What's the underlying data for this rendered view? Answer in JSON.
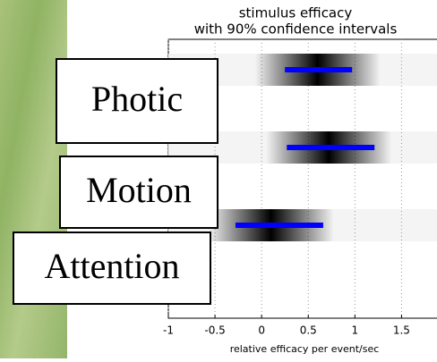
{
  "chart_data": {
    "type": "interval",
    "title": "stimulus efficacy",
    "subtitle": "with 90% confidence intervals",
    "xlabel": "relative efficacy per event/sec",
    "categories": [
      "Photic",
      "Motion",
      "Attention"
    ],
    "estimates": [
      0.6,
      0.72,
      0.1
    ],
    "low": [
      0.25,
      0.27,
      -0.28
    ],
    "high": [
      0.97,
      1.21,
      0.66
    ],
    "color": "#0000ff",
    "xlim": [
      -1,
      1.88
    ],
    "xticks": [
      -1,
      -0.5,
      0,
      0.5,
      1,
      1.5
    ],
    "grid": true
  }
}
